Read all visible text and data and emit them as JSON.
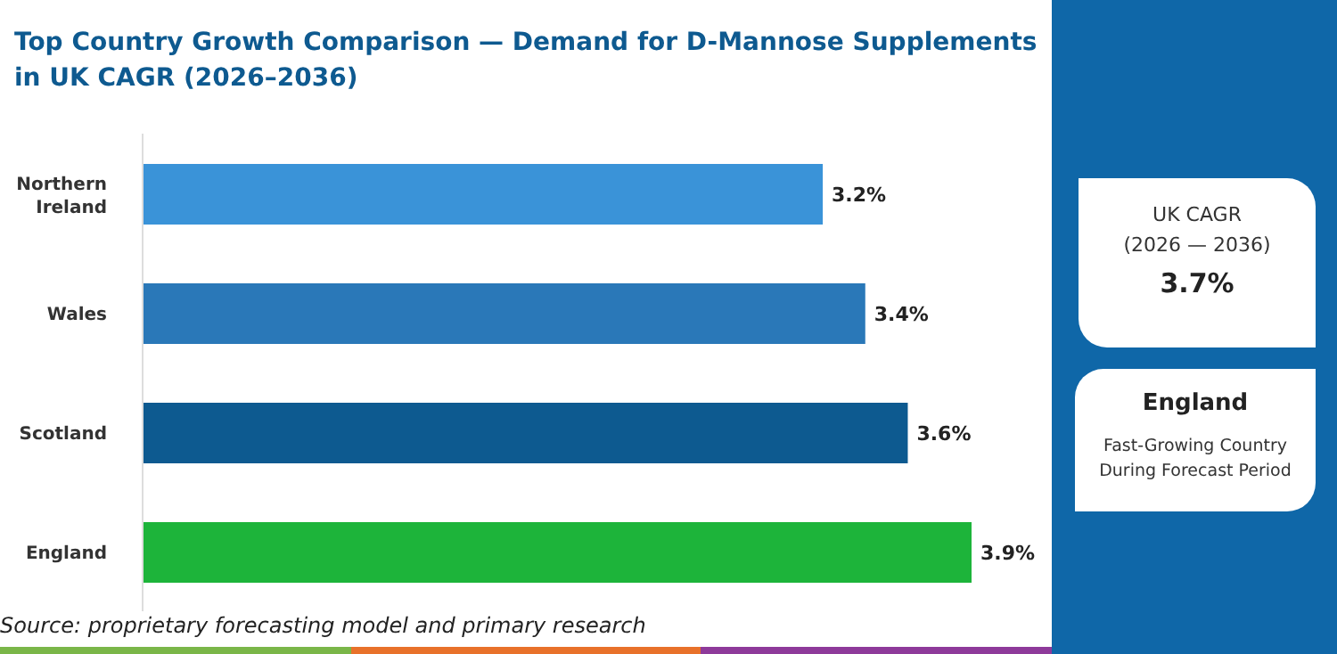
{
  "chart_data": {
    "type": "bar",
    "orientation": "horizontal",
    "title": "Top Country Growth Comparison — Demand for D-Mannose Supplements in UK CAGR (2026–2036)",
    "categories": [
      "Northern Ireland",
      "Wales",
      "Scotland",
      "England"
    ],
    "values": [
      3.2,
      3.4,
      3.6,
      3.9
    ],
    "colors": [
      "#3a93d8",
      "#2a78b8",
      "#0d5a90",
      "#1db43a"
    ],
    "value_labels": [
      "3.2%",
      "3.4%",
      "3.6%",
      "3.9%"
    ],
    "annotations": [
      "UK CAGR",
      "(2026 — 2036)",
      "3.7%",
      "England",
      "Fast-Growing Country During Forecast Period",
      "Source: proprietary forecasting model and primary research"
    ]
  }
}
